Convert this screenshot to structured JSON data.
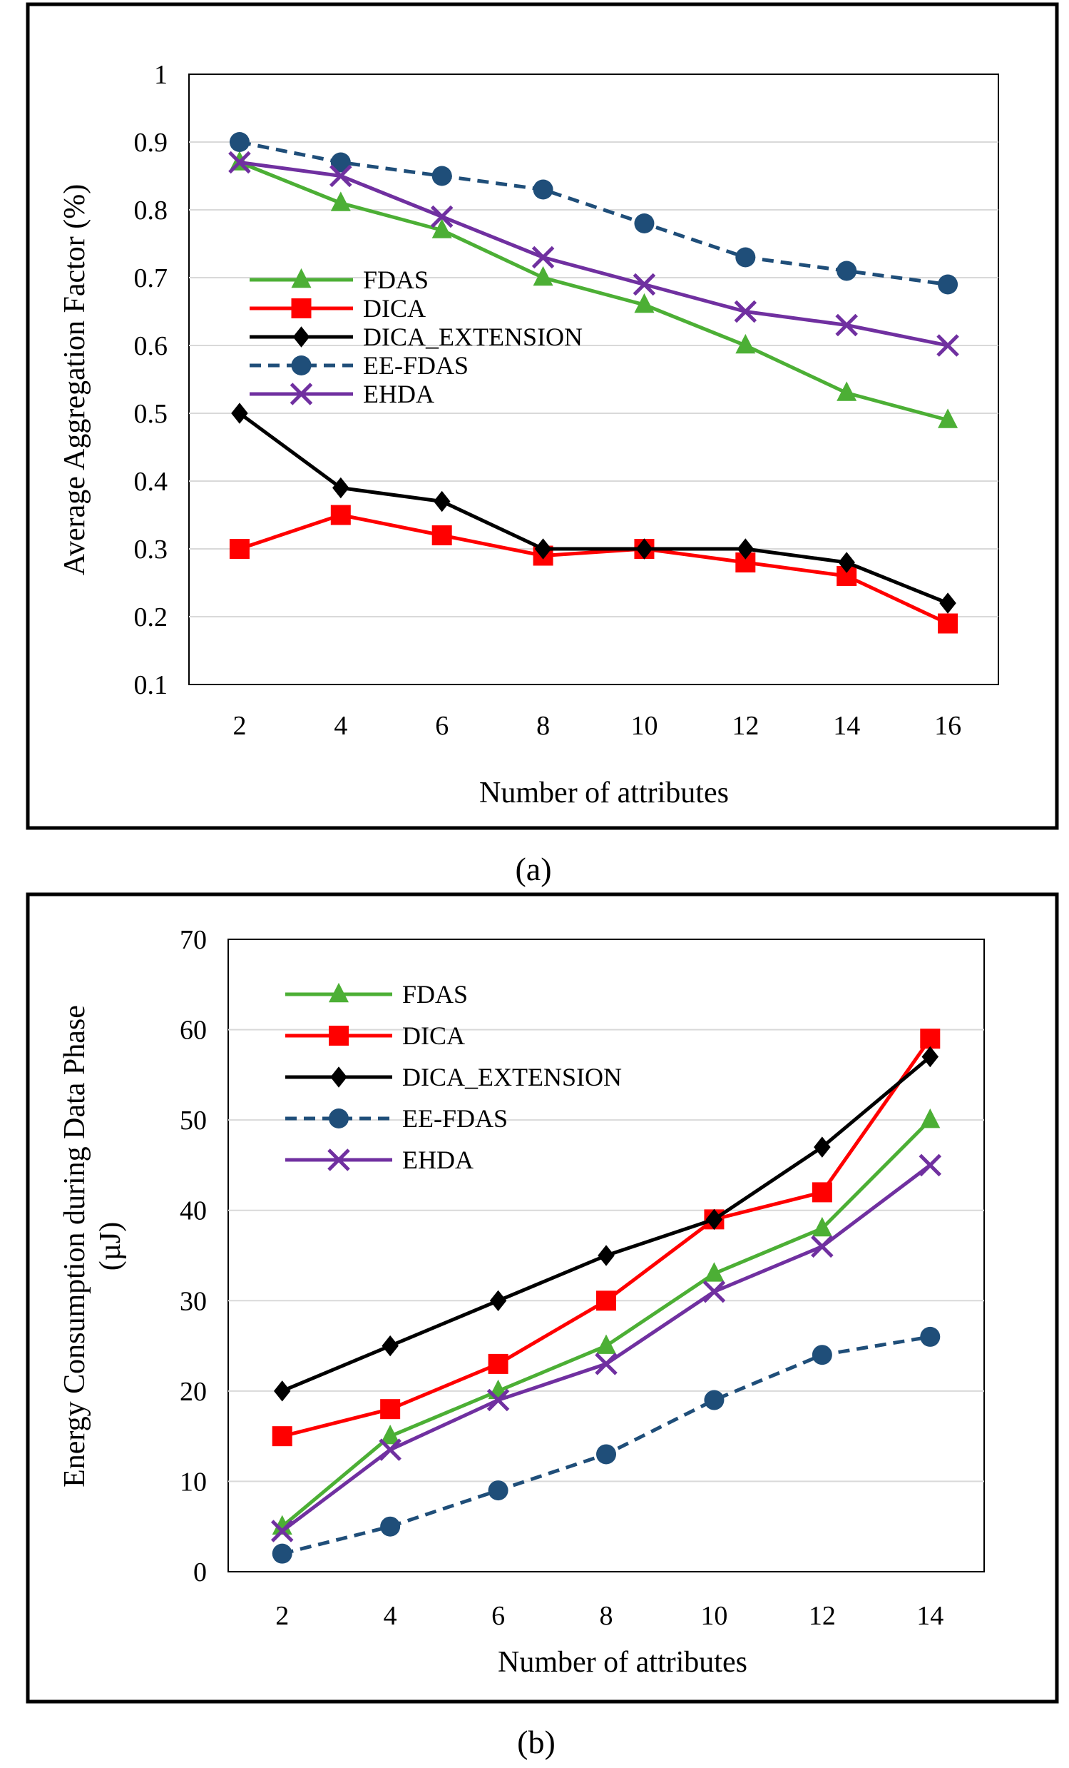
{
  "chart_data": [
    {
      "type": "line",
      "panel_label": "(a)",
      "xlabel": "Number of attributes",
      "ylabel": "Average  Aggregation  Factor (%)",
      "ylim": [
        0.1,
        1
      ],
      "yticks": [
        "0.1",
        "0.2",
        "0.3",
        "0.4",
        "0.5",
        "0.6",
        "0.7",
        "0.8",
        "0.9",
        "1"
      ],
      "categories": [
        "2",
        "4",
        "6",
        "8",
        "10",
        "12",
        "14",
        "16"
      ],
      "grid": true,
      "legend_position": "center-left",
      "series": [
        {
          "name": "FDAS",
          "color": "#4caf35",
          "marker": "triangle",
          "dashed": false,
          "values": [
            0.87,
            0.81,
            0.77,
            0.7,
            0.66,
            0.6,
            0.53,
            0.49
          ]
        },
        {
          "name": "DICA",
          "color": "#ff0000",
          "marker": "square",
          "dashed": false,
          "values": [
            0.3,
            0.35,
            0.32,
            0.29,
            0.3,
            0.28,
            0.26,
            0.19
          ]
        },
        {
          "name": "DICA_EXTENSION",
          "color": "#000000",
          "marker": "diamond",
          "dashed": false,
          "values": [
            0.5,
            0.39,
            0.37,
            0.3,
            0.3,
            0.3,
            0.28,
            0.22
          ]
        },
        {
          "name": "EE-FDAS",
          "color": "#1f4e79",
          "marker": "circle",
          "dashed": true,
          "values": [
            0.9,
            0.87,
            0.85,
            0.83,
            0.78,
            0.73,
            0.71,
            0.69
          ]
        },
        {
          "name": "EHDA",
          "color": "#7030a0",
          "marker": "x",
          "dashed": false,
          "values": [
            0.87,
            0.85,
            0.79,
            0.73,
            0.69,
            0.65,
            0.63,
            0.6
          ]
        }
      ]
    },
    {
      "type": "line",
      "panel_label": "(b)",
      "xlabel": "Number of attributes",
      "ylabel": "Energy Consumption during Data Phase",
      "ylabel2": "(µJ)",
      "ylim": [
        0,
        70
      ],
      "yticks": [
        "0",
        "10",
        "20",
        "30",
        "40",
        "50",
        "60",
        "70"
      ],
      "categories": [
        "2",
        "4",
        "6",
        "8",
        "10",
        "12",
        "14"
      ],
      "grid": true,
      "legend_position": "top-left",
      "series": [
        {
          "name": "FDAS",
          "color": "#4caf35",
          "marker": "triangle",
          "dashed": false,
          "values": [
            5,
            15,
            20,
            25,
            33,
            38,
            50
          ]
        },
        {
          "name": "DICA",
          "color": "#ff0000",
          "marker": "square",
          "dashed": false,
          "values": [
            15,
            18,
            23,
            30,
            39,
            42,
            59
          ]
        },
        {
          "name": "DICA_EXTENSION",
          "color": "#000000",
          "marker": "diamond",
          "dashed": false,
          "values": [
            20,
            25,
            30,
            35,
            39,
            47,
            57
          ]
        },
        {
          "name": "EE-FDAS",
          "color": "#1f4e79",
          "marker": "circle",
          "dashed": true,
          "values": [
            2,
            5,
            9,
            13,
            19,
            24,
            26
          ]
        },
        {
          "name": "EHDA",
          "color": "#7030a0",
          "marker": "x",
          "dashed": false,
          "values": [
            4.5,
            13.5,
            19,
            23,
            31,
            36,
            45
          ]
        }
      ]
    }
  ]
}
